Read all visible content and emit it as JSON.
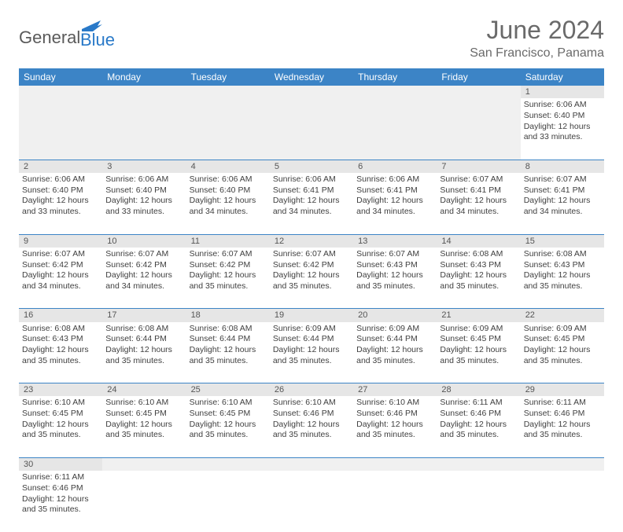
{
  "logo": {
    "general": "General",
    "blue": "Blue"
  },
  "header": {
    "month_title": "June 2024",
    "location": "San Francisco, Panama"
  },
  "colors": {
    "header_bg": "#3c84c6",
    "header_text": "#ffffff",
    "daynum_bg": "#e6e6e6",
    "cell_border": "#3c84c6",
    "text": "#404040",
    "logo_gray": "#5a5a5a",
    "logo_blue": "#2979c8"
  },
  "day_headers": [
    "Sunday",
    "Monday",
    "Tuesday",
    "Wednesday",
    "Thursday",
    "Friday",
    "Saturday"
  ],
  "weeks": [
    {
      "nums": [
        "",
        "",
        "",
        "",
        "",
        "",
        "1"
      ],
      "data": [
        null,
        null,
        null,
        null,
        null,
        null,
        {
          "sunrise": "Sunrise: 6:06 AM",
          "sunset": "Sunset: 6:40 PM",
          "day1": "Daylight: 12 hours",
          "day2": "and 33 minutes."
        }
      ]
    },
    {
      "nums": [
        "2",
        "3",
        "4",
        "5",
        "6",
        "7",
        "8"
      ],
      "data": [
        {
          "sunrise": "Sunrise: 6:06 AM",
          "sunset": "Sunset: 6:40 PM",
          "day1": "Daylight: 12 hours",
          "day2": "and 33 minutes."
        },
        {
          "sunrise": "Sunrise: 6:06 AM",
          "sunset": "Sunset: 6:40 PM",
          "day1": "Daylight: 12 hours",
          "day2": "and 33 minutes."
        },
        {
          "sunrise": "Sunrise: 6:06 AM",
          "sunset": "Sunset: 6:40 PM",
          "day1": "Daylight: 12 hours",
          "day2": "and 34 minutes."
        },
        {
          "sunrise": "Sunrise: 6:06 AM",
          "sunset": "Sunset: 6:41 PM",
          "day1": "Daylight: 12 hours",
          "day2": "and 34 minutes."
        },
        {
          "sunrise": "Sunrise: 6:06 AM",
          "sunset": "Sunset: 6:41 PM",
          "day1": "Daylight: 12 hours",
          "day2": "and 34 minutes."
        },
        {
          "sunrise": "Sunrise: 6:07 AM",
          "sunset": "Sunset: 6:41 PM",
          "day1": "Daylight: 12 hours",
          "day2": "and 34 minutes."
        },
        {
          "sunrise": "Sunrise: 6:07 AM",
          "sunset": "Sunset: 6:41 PM",
          "day1": "Daylight: 12 hours",
          "day2": "and 34 minutes."
        }
      ]
    },
    {
      "nums": [
        "9",
        "10",
        "11",
        "12",
        "13",
        "14",
        "15"
      ],
      "data": [
        {
          "sunrise": "Sunrise: 6:07 AM",
          "sunset": "Sunset: 6:42 PM",
          "day1": "Daylight: 12 hours",
          "day2": "and 34 minutes."
        },
        {
          "sunrise": "Sunrise: 6:07 AM",
          "sunset": "Sunset: 6:42 PM",
          "day1": "Daylight: 12 hours",
          "day2": "and 34 minutes."
        },
        {
          "sunrise": "Sunrise: 6:07 AM",
          "sunset": "Sunset: 6:42 PM",
          "day1": "Daylight: 12 hours",
          "day2": "and 35 minutes."
        },
        {
          "sunrise": "Sunrise: 6:07 AM",
          "sunset": "Sunset: 6:42 PM",
          "day1": "Daylight: 12 hours",
          "day2": "and 35 minutes."
        },
        {
          "sunrise": "Sunrise: 6:07 AM",
          "sunset": "Sunset: 6:43 PM",
          "day1": "Daylight: 12 hours",
          "day2": "and 35 minutes."
        },
        {
          "sunrise": "Sunrise: 6:08 AM",
          "sunset": "Sunset: 6:43 PM",
          "day1": "Daylight: 12 hours",
          "day2": "and 35 minutes."
        },
        {
          "sunrise": "Sunrise: 6:08 AM",
          "sunset": "Sunset: 6:43 PM",
          "day1": "Daylight: 12 hours",
          "day2": "and 35 minutes."
        }
      ]
    },
    {
      "nums": [
        "16",
        "17",
        "18",
        "19",
        "20",
        "21",
        "22"
      ],
      "data": [
        {
          "sunrise": "Sunrise: 6:08 AM",
          "sunset": "Sunset: 6:43 PM",
          "day1": "Daylight: 12 hours",
          "day2": "and 35 minutes."
        },
        {
          "sunrise": "Sunrise: 6:08 AM",
          "sunset": "Sunset: 6:44 PM",
          "day1": "Daylight: 12 hours",
          "day2": "and 35 minutes."
        },
        {
          "sunrise": "Sunrise: 6:08 AM",
          "sunset": "Sunset: 6:44 PM",
          "day1": "Daylight: 12 hours",
          "day2": "and 35 minutes."
        },
        {
          "sunrise": "Sunrise: 6:09 AM",
          "sunset": "Sunset: 6:44 PM",
          "day1": "Daylight: 12 hours",
          "day2": "and 35 minutes."
        },
        {
          "sunrise": "Sunrise: 6:09 AM",
          "sunset": "Sunset: 6:44 PM",
          "day1": "Daylight: 12 hours",
          "day2": "and 35 minutes."
        },
        {
          "sunrise": "Sunrise: 6:09 AM",
          "sunset": "Sunset: 6:45 PM",
          "day1": "Daylight: 12 hours",
          "day2": "and 35 minutes."
        },
        {
          "sunrise": "Sunrise: 6:09 AM",
          "sunset": "Sunset: 6:45 PM",
          "day1": "Daylight: 12 hours",
          "day2": "and 35 minutes."
        }
      ]
    },
    {
      "nums": [
        "23",
        "24",
        "25",
        "26",
        "27",
        "28",
        "29"
      ],
      "data": [
        {
          "sunrise": "Sunrise: 6:10 AM",
          "sunset": "Sunset: 6:45 PM",
          "day1": "Daylight: 12 hours",
          "day2": "and 35 minutes."
        },
        {
          "sunrise": "Sunrise: 6:10 AM",
          "sunset": "Sunset: 6:45 PM",
          "day1": "Daylight: 12 hours",
          "day2": "and 35 minutes."
        },
        {
          "sunrise": "Sunrise: 6:10 AM",
          "sunset": "Sunset: 6:45 PM",
          "day1": "Daylight: 12 hours",
          "day2": "and 35 minutes."
        },
        {
          "sunrise": "Sunrise: 6:10 AM",
          "sunset": "Sunset: 6:46 PM",
          "day1": "Daylight: 12 hours",
          "day2": "and 35 minutes."
        },
        {
          "sunrise": "Sunrise: 6:10 AM",
          "sunset": "Sunset: 6:46 PM",
          "day1": "Daylight: 12 hours",
          "day2": "and 35 minutes."
        },
        {
          "sunrise": "Sunrise: 6:11 AM",
          "sunset": "Sunset: 6:46 PM",
          "day1": "Daylight: 12 hours",
          "day2": "and 35 minutes."
        },
        {
          "sunrise": "Sunrise: 6:11 AM",
          "sunset": "Sunset: 6:46 PM",
          "day1": "Daylight: 12 hours",
          "day2": "and 35 minutes."
        }
      ]
    },
    {
      "nums": [
        "30",
        "",
        "",
        "",
        "",
        "",
        ""
      ],
      "data": [
        {
          "sunrise": "Sunrise: 6:11 AM",
          "sunset": "Sunset: 6:46 PM",
          "day1": "Daylight: 12 hours",
          "day2": "and 35 minutes."
        },
        null,
        null,
        null,
        null,
        null,
        null
      ]
    }
  ]
}
